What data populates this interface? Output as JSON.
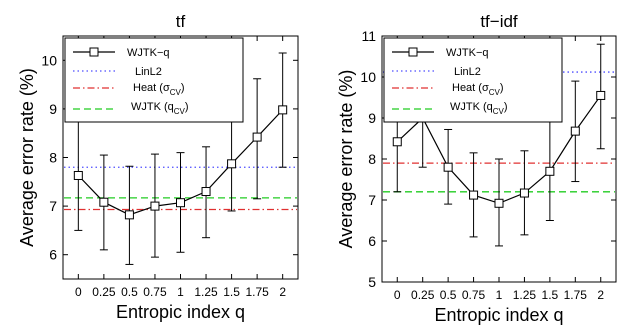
{
  "chart_data": [
    {
      "type": "line",
      "title": "tf",
      "xlabel": "Entropic index q",
      "ylabel": "Average error rate (%)",
      "x_ticks": [
        "0",
        "0.25",
        "0.5",
        "0.75",
        "1",
        "1.25",
        "1.5",
        "1.75",
        "2"
      ],
      "x": [
        0,
        0.25,
        0.5,
        0.75,
        1,
        1.25,
        1.5,
        1.75,
        2
      ],
      "xlim": [
        -0.15,
        2.15
      ],
      "ylim": [
        5.5,
        10.5
      ],
      "y_ticks": [
        "6",
        "7",
        "8",
        "9",
        "10"
      ],
      "grid": false,
      "legend_position": "top-left",
      "legend": {
        "wjtk_q": "WJTK−q",
        "linl2": "LinL2",
        "heat_prefix": "Heat (σ",
        "heat_sub": "CV",
        "heat_suffix": ")",
        "wjtk_prefix": "WJTK (q",
        "wjtk_sub": "CV",
        "wjtk_suffix": ")"
      },
      "series": [
        {
          "name": "WJTK−q",
          "color": "#000000",
          "marker": "square",
          "values": [
            7.63,
            7.08,
            6.82,
            7.0,
            7.07,
            7.3,
            7.87,
            8.42,
            8.98
          ],
          "err_low": [
            6.5,
            6.1,
            5.8,
            5.95,
            6.05,
            6.35,
            6.9,
            7.15,
            7.8
          ],
          "err_high": [
            8.8,
            8.05,
            7.82,
            8.07,
            8.1,
            8.22,
            8.8,
            9.62,
            10.15
          ]
        }
      ],
      "references": [
        {
          "name": "LinL2",
          "value": 7.8,
          "color": "#4d4dff",
          "style": "dotted"
        },
        {
          "name": "Heat",
          "value": 6.93,
          "color": "#e03030",
          "style": "dashdot"
        },
        {
          "name": "WJTK (qCV)",
          "value": 7.17,
          "color": "#22cc22",
          "style": "dashed"
        }
      ]
    },
    {
      "type": "line",
      "title": "tf−idf",
      "xlabel": "Entropic index q",
      "ylabel": "Average error rate (%)",
      "x_ticks": [
        "0",
        "0.25",
        "0.5",
        "0.75",
        "1",
        "1.25",
        "1.5",
        "1.75",
        "2"
      ],
      "x": [
        0,
        0.25,
        0.5,
        0.75,
        1,
        1.25,
        1.5,
        1.75,
        2
      ],
      "xlim": [
        -0.15,
        2.15
      ],
      "ylim": [
        5,
        11
      ],
      "y_ticks": [
        "5",
        "6",
        "7",
        "8",
        "9",
        "10",
        "11"
      ],
      "grid": false,
      "legend_position": "top-left",
      "legend": {
        "wjtk_q": "WJTK−q",
        "linl2": "LinL2",
        "heat_prefix": "Heat (σ",
        "heat_sub": "CV",
        "heat_suffix": ")",
        "wjtk_prefix": "WJTK (q",
        "wjtk_sub": "CV",
        "wjtk_suffix": ")"
      },
      "series": [
        {
          "name": "WJTK−q",
          "color": "#000000",
          "marker": "square",
          "values": [
            8.42,
            9.0,
            7.8,
            7.12,
            6.92,
            7.17,
            7.7,
            8.68,
            9.55
          ],
          "err_low": [
            7.2,
            7.8,
            6.9,
            6.1,
            5.88,
            6.15,
            6.5,
            7.45,
            8.25
          ],
          "err_high": [
            9.62,
            10.15,
            8.72,
            8.15,
            8.0,
            8.2,
            8.92,
            9.9,
            10.8
          ]
        }
      ],
      "references": [
        {
          "name": "LinL2",
          "value": 10.12,
          "color": "#4d4dff",
          "style": "dotted"
        },
        {
          "name": "Heat",
          "value": 7.9,
          "color": "#e03030",
          "style": "dashdot"
        },
        {
          "name": "WJTK (qCV)",
          "value": 7.2,
          "color": "#22cc22",
          "style": "dashed"
        }
      ]
    }
  ]
}
